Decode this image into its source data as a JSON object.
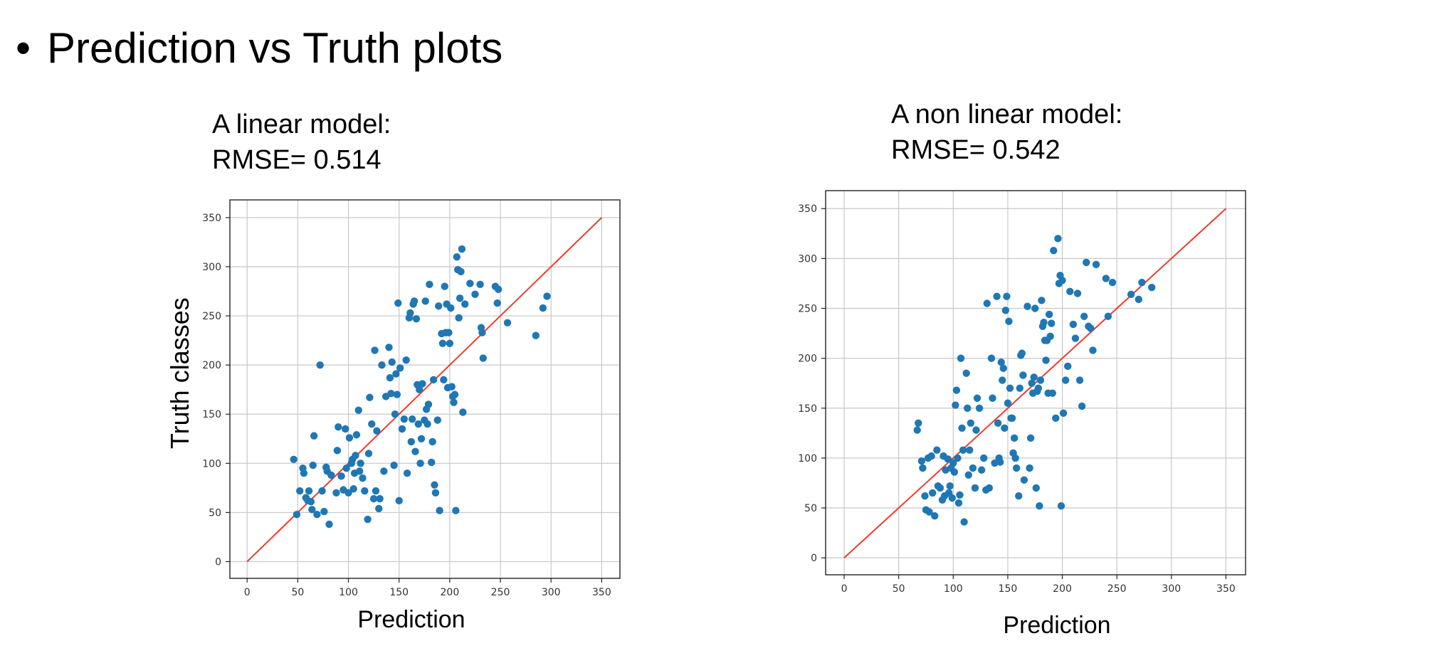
{
  "slide": {
    "bullet": "•",
    "title": "Prediction vs Truth plots"
  },
  "colors": {
    "points": "#1f77b4",
    "identity_line": "#ef3b2c",
    "grid": "#c8c8c8"
  },
  "chart_data": [
    {
      "type": "scatter",
      "title_line1": "A linear model:",
      "title_line2": "RMSE= 0.514",
      "xlabel": "Prediction",
      "ylabel": "Truth classes",
      "xlim": [
        -17,
        368
      ],
      "ylim": [
        -17,
        368
      ],
      "xticks": [
        0,
        50,
        100,
        150,
        200,
        250,
        300,
        350
      ],
      "yticks": [
        0,
        50,
        100,
        150,
        200,
        250,
        300,
        350
      ],
      "grid": true,
      "reference_line": {
        "from": [
          0,
          0
        ],
        "to": [
          350,
          350
        ]
      },
      "x": [
        46,
        49,
        52,
        55,
        56,
        58,
        60,
        61,
        63,
        64,
        65,
        66,
        69,
        72,
        74,
        76,
        78,
        79,
        81,
        83,
        88,
        89,
        90,
        93,
        95,
        97,
        98,
        100,
        101,
        103,
        104,
        105,
        106,
        107,
        108,
        110,
        111,
        112,
        114,
        116,
        119,
        120,
        121,
        123,
        125,
        126,
        127,
        128,
        130,
        131,
        133,
        135,
        137,
        140,
        141,
        142,
        143,
        145,
        146,
        147,
        148,
        149,
        150,
        151,
        153,
        155,
        157,
        158,
        160,
        161,
        162,
        163,
        164,
        165,
        166,
        167,
        168,
        169,
        170,
        171,
        172,
        173,
        175,
        176,
        177,
        178,
        179,
        180,
        182,
        183,
        184,
        185,
        186,
        188,
        189,
        190,
        192,
        193,
        194,
        195,
        196,
        197,
        198,
        199,
        200,
        201,
        202,
        203,
        204,
        205,
        206,
        207,
        208,
        209,
        210,
        211,
        212,
        213,
        215,
        220,
        225,
        230,
        231,
        232,
        233,
        245,
        247,
        248,
        257,
        285,
        292,
        296
      ],
      "y": [
        104,
        48,
        72,
        95,
        90,
        65,
        62,
        72,
        61,
        53,
        98,
        128,
        48,
        200,
        72,
        51,
        96,
        92,
        38,
        88,
        70,
        113,
        137,
        87,
        73,
        135,
        95,
        70,
        126,
        100,
        104,
        74,
        90,
        108,
        129,
        154,
        92,
        100,
        85,
        72,
        43,
        110,
        167,
        140,
        64,
        215,
        72,
        133,
        54,
        64,
        200,
        92,
        168,
        218,
        187,
        171,
        203,
        98,
        150,
        191,
        170,
        263,
        62,
        197,
        135,
        145,
        205,
        90,
        248,
        253,
        122,
        145,
        262,
        265,
        112,
        247,
        180,
        140,
        175,
        100,
        125,
        181,
        144,
        265,
        155,
        140,
        160,
        282,
        101,
        122,
        185,
        78,
        70,
        144,
        260,
        52,
        232,
        222,
        185,
        280,
        233,
        262,
        177,
        233,
        222,
        258,
        178,
        168,
        162,
        170,
        52,
        310,
        297,
        248,
        268,
        295,
        318,
        152,
        262,
        283,
        272,
        282,
        238,
        233,
        207,
        280,
        263,
        277,
        243,
        230,
        258,
        270
      ]
    },
    {
      "type": "scatter",
      "title_line1": "A non linear model:",
      "title_line2": "RMSE= 0.542",
      "xlabel": "Prediction",
      "ylabel": "",
      "xlim": [
        -17,
        368
      ],
      "ylim": [
        -17,
        368
      ],
      "xticks": [
        0,
        50,
        100,
        150,
        200,
        250,
        300,
        350
      ],
      "yticks": [
        0,
        50,
        100,
        150,
        200,
        250,
        300,
        350
      ],
      "grid": true,
      "reference_line": {
        "from": [
          0,
          0
        ],
        "to": [
          350,
          350
        ]
      },
      "x": [
        67,
        68,
        71,
        72,
        74,
        75,
        77,
        78,
        80,
        81,
        83,
        85,
        86,
        88,
        90,
        91,
        92,
        93,
        95,
        96,
        97,
        98,
        99,
        100,
        101,
        102,
        103,
        104,
        105,
        106,
        107,
        108,
        109,
        110,
        112,
        113,
        114,
        115,
        116,
        118,
        120,
        121,
        122,
        124,
        126,
        128,
        130,
        131,
        133,
        135,
        136,
        138,
        140,
        141,
        142,
        143,
        144,
        145,
        146,
        147,
        148,
        149,
        150,
        151,
        152,
        153,
        154,
        155,
        156,
        157,
        158,
        160,
        161,
        162,
        163,
        164,
        165,
        168,
        170,
        171,
        172,
        173,
        174,
        175,
        176,
        177,
        178,
        179,
        180,
        181,
        182,
        183,
        184,
        185,
        186,
        187,
        188,
        189,
        190,
        191,
        192,
        194,
        196,
        197,
        198,
        199,
        200,
        201,
        203,
        205,
        207,
        210,
        212,
        214,
        216,
        218,
        220,
        222,
        224,
        226,
        228,
        231,
        240,
        242,
        246,
        263,
        270,
        273,
        282
      ],
      "y": [
        128,
        135,
        97,
        90,
        62,
        48,
        100,
        46,
        102,
        65,
        42,
        108,
        72,
        70,
        58,
        102,
        62,
        88,
        99,
        65,
        72,
        90,
        60,
        95,
        86,
        153,
        168,
        100,
        55,
        63,
        200,
        130,
        108,
        36,
        185,
        150,
        83,
        108,
        135,
        90,
        70,
        128,
        160,
        150,
        88,
        100,
        68,
        255,
        70,
        200,
        160,
        95,
        262,
        135,
        100,
        96,
        196,
        178,
        190,
        130,
        248,
        262,
        155,
        237,
        170,
        140,
        140,
        105,
        120,
        100,
        90,
        62,
        170,
        203,
        205,
        183,
        78,
        252,
        90,
        120,
        175,
        165,
        181,
        250,
        70,
        167,
        170,
        52,
        178,
        258,
        232,
        236,
        218,
        198,
        218,
        165,
        244,
        222,
        235,
        165,
        308,
        140,
        320,
        275,
        283,
        52,
        278,
        145,
        178,
        192,
        267,
        234,
        220,
        265,
        178,
        152,
        242,
        296,
        232,
        230,
        208,
        294,
        280,
        242,
        276,
        264,
        259,
        276,
        271
      ]
    }
  ]
}
